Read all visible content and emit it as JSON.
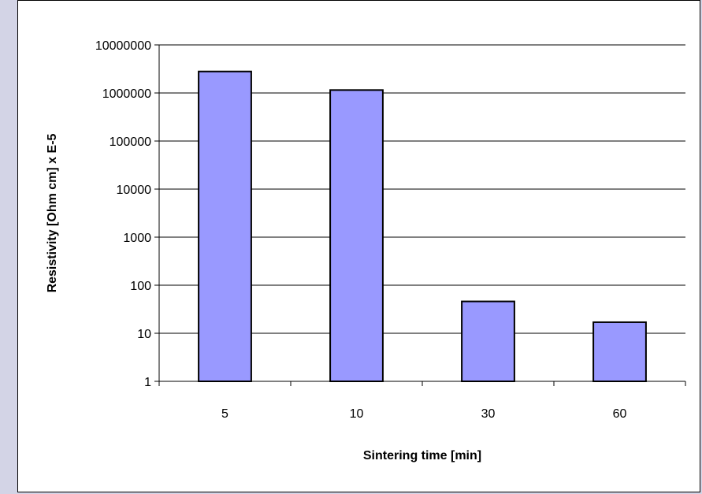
{
  "chart_data": {
    "type": "bar",
    "title": "",
    "xlabel": "Sintering time [min]",
    "ylabel": "Resistivity [Ohm cm] x E-5",
    "categories": [
      "5",
      "10",
      "30",
      "60"
    ],
    "values": [
      2800000,
      1150000,
      46,
      17
    ],
    "y_scale": "log",
    "ylim": [
      1,
      10000000
    ],
    "y_ticks": [
      1,
      10,
      100,
      1000,
      10000,
      100000,
      1000000,
      10000000
    ],
    "y_tick_labels": [
      "1",
      "10",
      "100",
      "1000",
      "10000",
      "100000",
      "1000000",
      "10000000"
    ],
    "grid": true,
    "legend": "none",
    "colors": {
      "bar_fill": "#9999ff",
      "bar_stroke": "#000000",
      "page_background": "#d3d4e6"
    }
  }
}
